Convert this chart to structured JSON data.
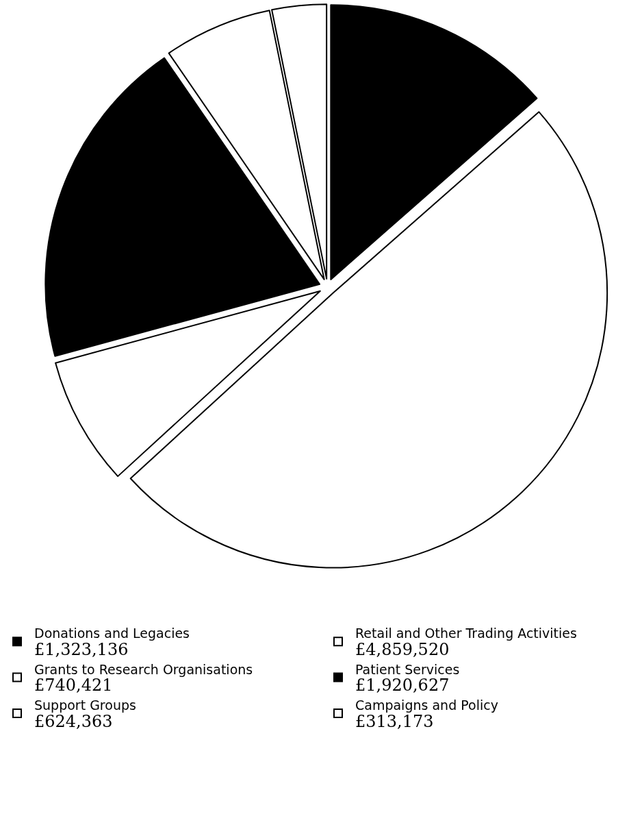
{
  "chart_data": {
    "type": "pie",
    "categories": [
      "Donations and Legacies",
      "Retail and Other Trading Activities",
      "Grants to Research Organisations",
      "Patient Services",
      "Support Groups",
      "Campaigns and Policy"
    ],
    "values": [
      1323136,
      4859520,
      740421,
      1920627,
      624363,
      313173
    ],
    "value_labels": [
      "£1,323,136",
      "£4,859,520",
      "£740,421",
      "£1,920,627",
      "£624,363",
      "£313,173"
    ],
    "colors": [
      "#000000",
      "#ffffff",
      "#ffffff",
      "#000000",
      "#ffffff",
      "#ffffff"
    ],
    "legend": "bottom"
  }
}
